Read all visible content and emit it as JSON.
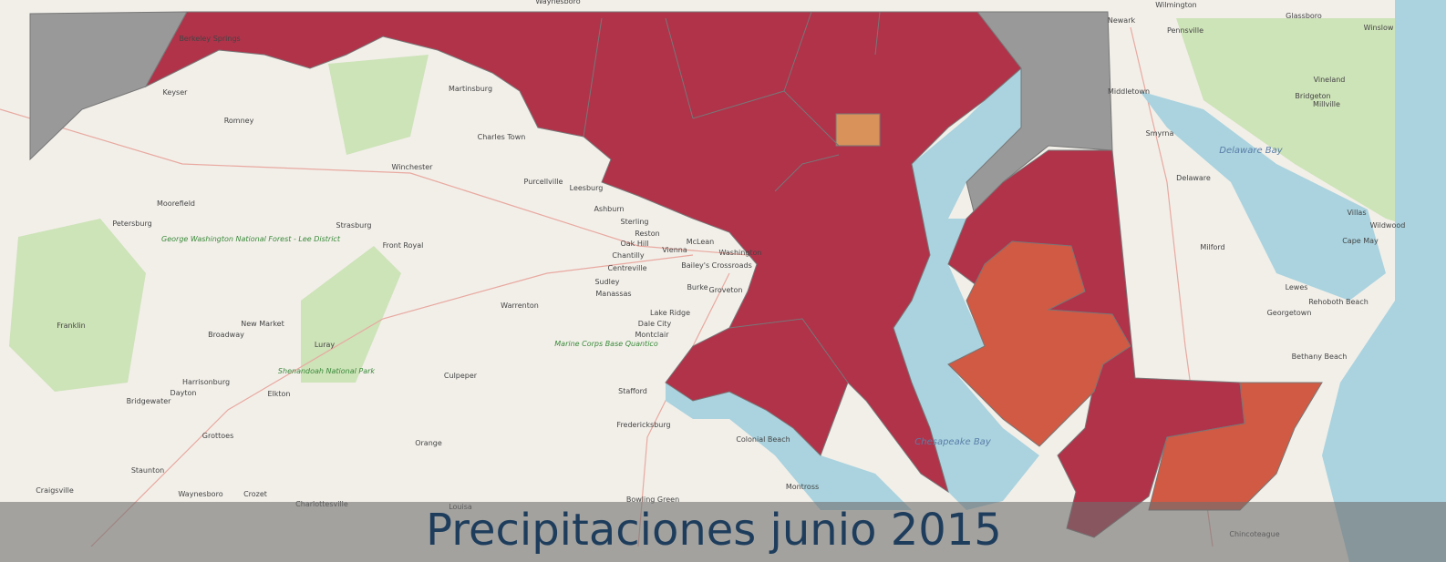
{
  "title": "Precipitaciones junio 2015",
  "places": [
    "Waynesboro",
    "Wilmington",
    "Newark",
    "Glassboro",
    "Winslow",
    "Pennsville",
    "Vineland",
    "Bridgeton",
    "Millville",
    "Berkeley Springs",
    "Keyser",
    "Romney",
    "Martinsburg",
    "Charles Town",
    "Winchester",
    "Moorefield",
    "Petersburg",
    "Purcellville",
    "Leesburg",
    "Ashburn",
    "Sterling",
    "Reston",
    "Oak Hill",
    "Vienna",
    "McLean",
    "Washington",
    "Chantilly",
    "Centreville",
    "Bailey's Crossroads",
    "Burke",
    "Sudley",
    "Manassas",
    "Groveton",
    "Lake Ridge",
    "Dale City",
    "Montclair",
    "Strasburg",
    "Front Royal",
    "Luray",
    "New Market",
    "Broadway",
    "Franklin",
    "Harrisonburg",
    "Dayton",
    "Bridgewater",
    "Elkton",
    "Grottoes",
    "Staunton",
    "Waynesboro",
    "Crozet",
    "Craigsville",
    "Charlottesville",
    "Louisa",
    "Orange",
    "Culpeper",
    "Warrenton",
    "Stafford",
    "Fredericksburg",
    "Bowling Green",
    "Colonial Beach",
    "Montross",
    "Chincoteague",
    "Bethany Beach",
    "Lewes",
    "Rehoboth Beach",
    "Georgetown",
    "Milford",
    "Smyrna",
    "Middletown",
    "Villas",
    "Wildwood",
    "Cape May",
    "Delaware"
  ],
  "areas": [
    "George Washington National Forest - Lee District",
    "Shenandoah National Park",
    "Marine Corps Base Quantico",
    "Chesapeake Bay",
    "Delaware Bay"
  ]
}
